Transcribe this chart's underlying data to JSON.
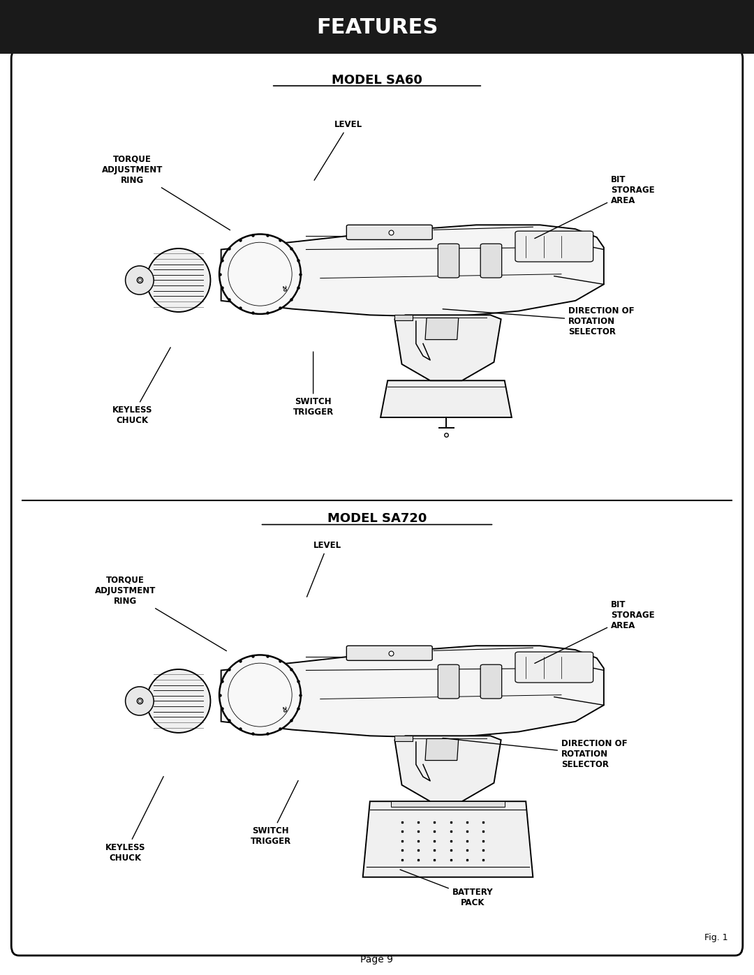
{
  "title": "FEATURES",
  "title_bg": "#1a1a1a",
  "title_color": "#ffffff",
  "title_fontsize": 22,
  "page_bg": "#ffffff",
  "border_color": "#000000",
  "page_number": "Page 9",
  "fig_label": "Fig. 1",
  "model1_title": "MODEL SA60",
  "model2_title": "MODEL SA720"
}
